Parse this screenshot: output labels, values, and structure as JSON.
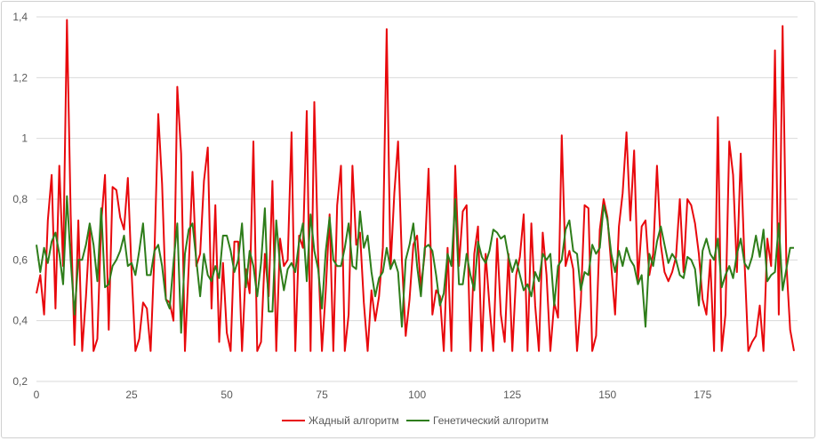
{
  "chart_data": {
    "type": "line",
    "title": "",
    "xlabel": "",
    "ylabel": "",
    "xlim": [
      0,
      199
    ],
    "ylim": [
      0.2,
      1.4
    ],
    "x_ticks": [
      "0",
      "25",
      "50",
      "75",
      "100",
      "125",
      "150",
      "175"
    ],
    "x_tick_values": [
      0,
      25,
      50,
      75,
      100,
      125,
      150,
      175
    ],
    "y_ticks": [
      "0,2",
      "0,4",
      "0,6",
      "0,8",
      "1",
      "1,2",
      "1,4"
    ],
    "y_tick_values": [
      0.2,
      0.4,
      0.6,
      0.8,
      1.0,
      1.2,
      1.4
    ],
    "grid": "horizontal",
    "legend_position": "bottom",
    "series": [
      {
        "name": "Жадный алгоритм",
        "color": "#e8080c",
        "values": [
          0.49,
          0.55,
          0.42,
          0.73,
          0.88,
          0.44,
          0.91,
          0.58,
          1.39,
          0.75,
          0.32,
          0.73,
          0.3,
          0.48,
          0.7,
          0.3,
          0.34,
          0.72,
          0.88,
          0.37,
          0.84,
          0.83,
          0.74,
          0.7,
          0.87,
          0.56,
          0.3,
          0.34,
          0.46,
          0.44,
          0.3,
          0.62,
          1.08,
          0.85,
          0.47,
          0.46,
          0.4,
          1.17,
          0.95,
          0.3,
          0.58,
          0.89,
          0.58,
          0.62,
          0.86,
          0.97,
          0.44,
          0.78,
          0.33,
          0.59,
          0.36,
          0.3,
          0.66,
          0.66,
          0.3,
          0.57,
          0.49,
          0.99,
          0.3,
          0.33,
          0.62,
          0.48,
          0.86,
          0.3,
          0.67,
          0.58,
          0.6,
          1.02,
          0.3,
          0.68,
          0.64,
          1.09,
          0.3,
          1.12,
          0.61,
          0.3,
          0.5,
          0.75,
          0.3,
          0.78,
          0.91,
          0.3,
          0.42,
          0.91,
          0.65,
          0.69,
          0.46,
          0.3,
          0.5,
          0.4,
          0.48,
          0.64,
          1.36,
          0.57,
          0.82,
          0.99,
          0.6,
          0.35,
          0.47,
          0.65,
          0.68,
          0.51,
          0.62,
          0.9,
          0.42,
          0.5,
          0.48,
          0.3,
          0.64,
          0.3,
          0.91,
          0.58,
          0.76,
          0.78,
          0.3,
          0.62,
          0.71,
          0.3,
          0.62,
          0.45,
          0.3,
          0.67,
          0.42,
          0.33,
          0.62,
          0.3,
          0.55,
          0.61,
          0.75,
          0.3,
          0.72,
          0.45,
          0.3,
          0.69,
          0.55,
          0.3,
          0.46,
          0.41,
          1.01,
          0.58,
          0.63,
          0.57,
          0.3,
          0.46,
          0.78,
          0.77,
          0.3,
          0.35,
          0.7,
          0.8,
          0.74,
          0.58,
          0.42,
          0.71,
          0.82,
          1.02,
          0.73,
          0.96,
          0.53,
          0.71,
          0.73,
          0.55,
          0.62,
          0.91,
          0.65,
          0.56,
          0.53,
          0.56,
          0.61,
          0.8,
          0.56,
          0.8,
          0.78,
          0.72,
          0.62,
          0.47,
          0.42,
          0.6,
          0.3,
          1.07,
          0.3,
          0.42,
          0.99,
          0.88,
          0.56,
          0.95,
          0.6,
          0.3,
          0.33,
          0.35,
          0.45,
          0.3,
          0.67,
          0.58,
          1.29,
          0.42,
          1.37,
          0.59,
          0.37,
          0.3
        ]
      },
      {
        "name": "Генетический алгоритм",
        "color": "#2e7d1a",
        "values": [
          0.65,
          0.56,
          0.64,
          0.59,
          0.66,
          0.69,
          0.62,
          0.52,
          0.81,
          0.6,
          0.42,
          0.6,
          0.6,
          0.65,
          0.72,
          0.65,
          0.53,
          0.77,
          0.51,
          0.52,
          0.58,
          0.6,
          0.63,
          0.68,
          0.58,
          0.59,
          0.55,
          0.63,
          0.72,
          0.55,
          0.55,
          0.63,
          0.65,
          0.58,
          0.47,
          0.44,
          0.59,
          0.72,
          0.36,
          0.62,
          0.7,
          0.72,
          0.6,
          0.48,
          0.62,
          0.55,
          0.53,
          0.58,
          0.54,
          0.68,
          0.68,
          0.63,
          0.56,
          0.6,
          0.72,
          0.51,
          0.63,
          0.58,
          0.48,
          0.59,
          0.77,
          0.43,
          0.43,
          0.73,
          0.58,
          0.5,
          0.57,
          0.59,
          0.56,
          0.66,
          0.72,
          0.53,
          0.75,
          0.63,
          0.57,
          0.44,
          0.63,
          0.74,
          0.6,
          0.58,
          0.58,
          0.64,
          0.72,
          0.58,
          0.57,
          0.76,
          0.64,
          0.68,
          0.56,
          0.48,
          0.54,
          0.56,
          0.64,
          0.57,
          0.6,
          0.56,
          0.38,
          0.6,
          0.65,
          0.72,
          0.58,
          0.48,
          0.64,
          0.65,
          0.63,
          0.55,
          0.45,
          0.49,
          0.62,
          0.58,
          0.8,
          0.52,
          0.52,
          0.62,
          0.55,
          0.5,
          0.66,
          0.61,
          0.59,
          0.63,
          0.7,
          0.69,
          0.67,
          0.68,
          0.61,
          0.56,
          0.6,
          0.55,
          0.5,
          0.52,
          0.48,
          0.56,
          0.53,
          0.62,
          0.6,
          0.62,
          0.45,
          0.58,
          0.6,
          0.7,
          0.73,
          0.63,
          0.62,
          0.5,
          0.56,
          0.55,
          0.65,
          0.62,
          0.64,
          0.78,
          0.73,
          0.62,
          0.56,
          0.63,
          0.58,
          0.64,
          0.6,
          0.58,
          0.52,
          0.55,
          0.38,
          0.62,
          0.58,
          0.66,
          0.71,
          0.65,
          0.59,
          0.62,
          0.6,
          0.55,
          0.54,
          0.61,
          0.6,
          0.57,
          0.45,
          0.63,
          0.67,
          0.62,
          0.6,
          0.67,
          0.51,
          0.55,
          0.58,
          0.54,
          0.62,
          0.67,
          0.59,
          0.57,
          0.61,
          0.68,
          0.61,
          0.7,
          0.53,
          0.55,
          0.56,
          0.72,
          0.5,
          0.57,
          0.64,
          0.64
        ]
      }
    ]
  }
}
